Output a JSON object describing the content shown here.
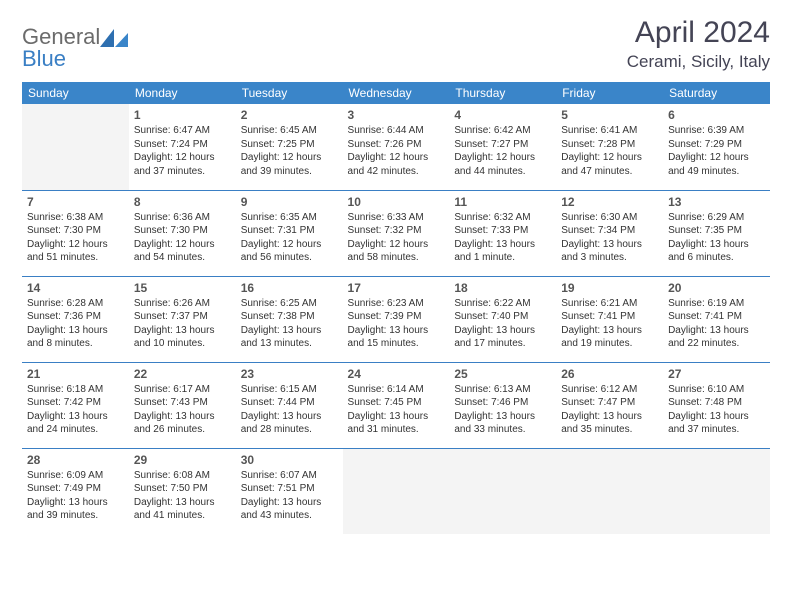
{
  "logo": {
    "text1": "General",
    "text2": "Blue"
  },
  "title": "April 2024",
  "location": "Cerami, Sicily, Italy",
  "colors": {
    "header_bg": "#3a85c9",
    "header_fg": "#ffffff",
    "rule": "#3a7fc4",
    "logo_gray": "#6b6b6b",
    "logo_blue": "#3a7fc4",
    "empty_bg": "#f4f4f4",
    "text": "#333333"
  },
  "day_headers": [
    "Sunday",
    "Monday",
    "Tuesday",
    "Wednesday",
    "Thursday",
    "Friday",
    "Saturday"
  ],
  "weeks": [
    [
      null,
      {
        "n": "1",
        "sr": "Sunrise: 6:47 AM",
        "ss": "Sunset: 7:24 PM",
        "d1": "Daylight: 12 hours",
        "d2": "and 37 minutes."
      },
      {
        "n": "2",
        "sr": "Sunrise: 6:45 AM",
        "ss": "Sunset: 7:25 PM",
        "d1": "Daylight: 12 hours",
        "d2": "and 39 minutes."
      },
      {
        "n": "3",
        "sr": "Sunrise: 6:44 AM",
        "ss": "Sunset: 7:26 PM",
        "d1": "Daylight: 12 hours",
        "d2": "and 42 minutes."
      },
      {
        "n": "4",
        "sr": "Sunrise: 6:42 AM",
        "ss": "Sunset: 7:27 PM",
        "d1": "Daylight: 12 hours",
        "d2": "and 44 minutes."
      },
      {
        "n": "5",
        "sr": "Sunrise: 6:41 AM",
        "ss": "Sunset: 7:28 PM",
        "d1": "Daylight: 12 hours",
        "d2": "and 47 minutes."
      },
      {
        "n": "6",
        "sr": "Sunrise: 6:39 AM",
        "ss": "Sunset: 7:29 PM",
        "d1": "Daylight: 12 hours",
        "d2": "and 49 minutes."
      }
    ],
    [
      {
        "n": "7",
        "sr": "Sunrise: 6:38 AM",
        "ss": "Sunset: 7:30 PM",
        "d1": "Daylight: 12 hours",
        "d2": "and 51 minutes."
      },
      {
        "n": "8",
        "sr": "Sunrise: 6:36 AM",
        "ss": "Sunset: 7:30 PM",
        "d1": "Daylight: 12 hours",
        "d2": "and 54 minutes."
      },
      {
        "n": "9",
        "sr": "Sunrise: 6:35 AM",
        "ss": "Sunset: 7:31 PM",
        "d1": "Daylight: 12 hours",
        "d2": "and 56 minutes."
      },
      {
        "n": "10",
        "sr": "Sunrise: 6:33 AM",
        "ss": "Sunset: 7:32 PM",
        "d1": "Daylight: 12 hours",
        "d2": "and 58 minutes."
      },
      {
        "n": "11",
        "sr": "Sunrise: 6:32 AM",
        "ss": "Sunset: 7:33 PM",
        "d1": "Daylight: 13 hours",
        "d2": "and 1 minute."
      },
      {
        "n": "12",
        "sr": "Sunrise: 6:30 AM",
        "ss": "Sunset: 7:34 PM",
        "d1": "Daylight: 13 hours",
        "d2": "and 3 minutes."
      },
      {
        "n": "13",
        "sr": "Sunrise: 6:29 AM",
        "ss": "Sunset: 7:35 PM",
        "d1": "Daylight: 13 hours",
        "d2": "and 6 minutes."
      }
    ],
    [
      {
        "n": "14",
        "sr": "Sunrise: 6:28 AM",
        "ss": "Sunset: 7:36 PM",
        "d1": "Daylight: 13 hours",
        "d2": "and 8 minutes."
      },
      {
        "n": "15",
        "sr": "Sunrise: 6:26 AM",
        "ss": "Sunset: 7:37 PM",
        "d1": "Daylight: 13 hours",
        "d2": "and 10 minutes."
      },
      {
        "n": "16",
        "sr": "Sunrise: 6:25 AM",
        "ss": "Sunset: 7:38 PM",
        "d1": "Daylight: 13 hours",
        "d2": "and 13 minutes."
      },
      {
        "n": "17",
        "sr": "Sunrise: 6:23 AM",
        "ss": "Sunset: 7:39 PM",
        "d1": "Daylight: 13 hours",
        "d2": "and 15 minutes."
      },
      {
        "n": "18",
        "sr": "Sunrise: 6:22 AM",
        "ss": "Sunset: 7:40 PM",
        "d1": "Daylight: 13 hours",
        "d2": "and 17 minutes."
      },
      {
        "n": "19",
        "sr": "Sunrise: 6:21 AM",
        "ss": "Sunset: 7:41 PM",
        "d1": "Daylight: 13 hours",
        "d2": "and 19 minutes."
      },
      {
        "n": "20",
        "sr": "Sunrise: 6:19 AM",
        "ss": "Sunset: 7:41 PM",
        "d1": "Daylight: 13 hours",
        "d2": "and 22 minutes."
      }
    ],
    [
      {
        "n": "21",
        "sr": "Sunrise: 6:18 AM",
        "ss": "Sunset: 7:42 PM",
        "d1": "Daylight: 13 hours",
        "d2": "and 24 minutes."
      },
      {
        "n": "22",
        "sr": "Sunrise: 6:17 AM",
        "ss": "Sunset: 7:43 PM",
        "d1": "Daylight: 13 hours",
        "d2": "and 26 minutes."
      },
      {
        "n": "23",
        "sr": "Sunrise: 6:15 AM",
        "ss": "Sunset: 7:44 PM",
        "d1": "Daylight: 13 hours",
        "d2": "and 28 minutes."
      },
      {
        "n": "24",
        "sr": "Sunrise: 6:14 AM",
        "ss": "Sunset: 7:45 PM",
        "d1": "Daylight: 13 hours",
        "d2": "and 31 minutes."
      },
      {
        "n": "25",
        "sr": "Sunrise: 6:13 AM",
        "ss": "Sunset: 7:46 PM",
        "d1": "Daylight: 13 hours",
        "d2": "and 33 minutes."
      },
      {
        "n": "26",
        "sr": "Sunrise: 6:12 AM",
        "ss": "Sunset: 7:47 PM",
        "d1": "Daylight: 13 hours",
        "d2": "and 35 minutes."
      },
      {
        "n": "27",
        "sr": "Sunrise: 6:10 AM",
        "ss": "Sunset: 7:48 PM",
        "d1": "Daylight: 13 hours",
        "d2": "and 37 minutes."
      }
    ],
    [
      {
        "n": "28",
        "sr": "Sunrise: 6:09 AM",
        "ss": "Sunset: 7:49 PM",
        "d1": "Daylight: 13 hours",
        "d2": "and 39 minutes."
      },
      {
        "n": "29",
        "sr": "Sunrise: 6:08 AM",
        "ss": "Sunset: 7:50 PM",
        "d1": "Daylight: 13 hours",
        "d2": "and 41 minutes."
      },
      {
        "n": "30",
        "sr": "Sunrise: 6:07 AM",
        "ss": "Sunset: 7:51 PM",
        "d1": "Daylight: 13 hours",
        "d2": "and 43 minutes."
      },
      null,
      null,
      null,
      null
    ]
  ]
}
